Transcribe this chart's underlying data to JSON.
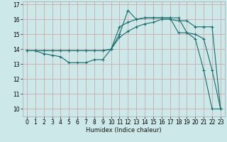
{
  "title": "",
  "xlabel": "Humidex (Indice chaleur)",
  "ylabel": "",
  "bg_color": "#cce8e8",
  "grid_color": "#ccaaaa",
  "line_color": "#1a6b6b",
  "xlim": [
    -0.5,
    23.5
  ],
  "ylim": [
    9.5,
    17.2
  ],
  "xticks": [
    0,
    1,
    2,
    3,
    4,
    5,
    6,
    7,
    8,
    9,
    10,
    11,
    12,
    13,
    14,
    15,
    16,
    17,
    18,
    19,
    20,
    21,
    22,
    23
  ],
  "yticks": [
    10,
    11,
    12,
    13,
    14,
    15,
    16,
    17
  ],
  "line1_x": [
    0,
    1,
    2,
    3,
    4,
    5,
    6,
    7,
    8,
    9,
    10,
    11,
    12,
    13,
    14,
    15,
    16,
    17,
    18,
    19,
    20,
    21,
    22,
    23
  ],
  "line1_y": [
    13.9,
    13.9,
    13.7,
    13.6,
    13.5,
    13.1,
    13.1,
    13.1,
    13.3,
    13.3,
    14.0,
    15.5,
    15.8,
    16.0,
    16.1,
    16.1,
    16.1,
    16.1,
    15.1,
    15.1,
    14.7,
    12.6,
    10.0,
    10.0
  ],
  "line2_x": [
    0,
    1,
    2,
    3,
    4,
    5,
    6,
    7,
    8,
    9,
    10,
    11,
    12,
    13,
    14,
    15,
    16,
    17,
    18,
    19,
    20,
    21,
    22,
    23
  ],
  "line2_y": [
    13.9,
    13.9,
    13.9,
    13.9,
    13.9,
    13.9,
    13.9,
    13.9,
    13.9,
    13.9,
    14.0,
    14.8,
    15.2,
    15.5,
    15.7,
    15.8,
    16.0,
    16.0,
    15.9,
    15.9,
    15.5,
    15.5,
    15.5,
    10.0
  ],
  "line3_x": [
    0,
    1,
    2,
    3,
    4,
    5,
    6,
    7,
    8,
    9,
    10,
    11,
    12,
    13,
    14,
    15,
    16,
    17,
    18,
    19,
    20,
    21,
    22,
    23
  ],
  "line3_y": [
    13.9,
    13.9,
    13.9,
    13.9,
    13.9,
    13.9,
    13.9,
    13.9,
    13.9,
    13.9,
    14.0,
    15.0,
    16.6,
    16.0,
    16.1,
    16.1,
    16.1,
    16.1,
    16.1,
    15.1,
    15.0,
    14.7,
    12.6,
    10.0
  ]
}
